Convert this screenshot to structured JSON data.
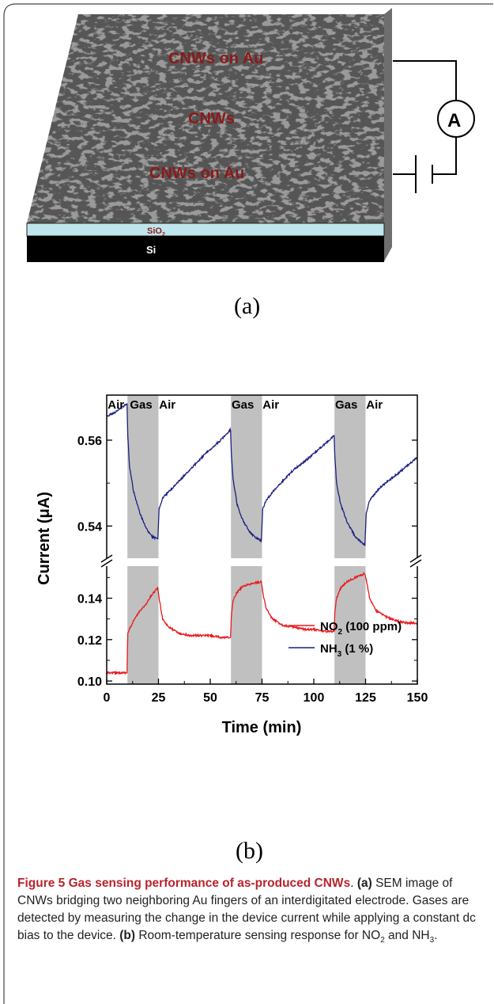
{
  "panel_a": {
    "labels": [
      "CNWs on Au",
      "CNWs",
      "CNWs on Au"
    ],
    "layer_sio2_main": "SiO",
    "layer_sio2_sub": "2",
    "layer_si": "Si",
    "ammeter": "A",
    "sublabel": "(a)"
  },
  "panel_b_sublabel": "(b)",
  "caption": {
    "fig_label": "Figure 5",
    "title": "Gas sensing performance of as-produced CNWs",
    "t1": ". ",
    "a_label": "(a)",
    "a_text": " SEM image of CNWs bridging two neighboring Au fingers of an interdigitated electrode. Gases are detected by measuring the change in the device current while applying a constant dc bias to the device. ",
    "b_label": "(b)",
    "b_text1": " Room-temperature sensing response for NO",
    "b_sub1": "2",
    "b_text2": " and NH",
    "b_sub2": "3",
    "b_text3": "."
  },
  "colors": {
    "no2": "#e8191c",
    "nh3": "#1a1f80",
    "gas_band": "#c0c0c0",
    "text_red": "#8b1a1a"
  },
  "chart_data": {
    "type": "line",
    "xlabel": "Time (min)",
    "ylabel": "Current (μA)",
    "x_ticks": [
      0,
      25,
      50,
      75,
      100,
      125,
      150
    ],
    "xlim": [
      0,
      150
    ],
    "y_ticks_upper": [
      0.54,
      0.56
    ],
    "y_ticks_lower": [
      0.1,
      0.12,
      0.14
    ],
    "ylim_upper": [
      0.5325,
      0.5705
    ],
    "ylim_lower": [
      0.0985,
      0.1555
    ],
    "broken_axis": true,
    "annotations": [
      "Air",
      "Gas",
      "Air",
      "Gas",
      "Air",
      "Gas",
      "Air"
    ],
    "gas_periods": [
      [
        10,
        25
      ],
      [
        60,
        75
      ],
      [
        110,
        125
      ]
    ],
    "legend": {
      "placement": "bottom-right",
      "entries": [
        {
          "main": "NO",
          "sub": "2",
          "rest": " (100 ppm)"
        },
        {
          "main": "NH",
          "sub": "3",
          "rest": " (1 %)"
        }
      ]
    },
    "series": [
      {
        "name": "NO2 (100 ppm)",
        "color": "#e8191c",
        "axis": "lower",
        "x": [
          0,
          9.8,
          10.2,
          11,
          13,
          16,
          19,
          22,
          24.7,
          25.3,
          27,
          30,
          35,
          40,
          45,
          50,
          55,
          59.8,
          60.2,
          61,
          63,
          66,
          70,
          74.7,
          75.3,
          77,
          80,
          85,
          90,
          95,
          100,
          105,
          109.8,
          110.2,
          111,
          113,
          116,
          120,
          124.7,
          125.3,
          127,
          130,
          135,
          140,
          145,
          150
        ],
        "y": [
          0.104,
          0.104,
          0.123,
          0.125,
          0.129,
          0.134,
          0.137,
          0.142,
          0.145,
          0.14,
          0.13,
          0.126,
          0.123,
          0.122,
          0.122,
          0.122,
          0.121,
          0.121,
          0.131,
          0.139,
          0.143,
          0.146,
          0.147,
          0.148,
          0.143,
          0.135,
          0.13,
          0.127,
          0.126,
          0.125,
          0.125,
          0.124,
          0.124,
          0.134,
          0.14,
          0.145,
          0.148,
          0.15,
          0.152,
          0.149,
          0.14,
          0.134,
          0.131,
          0.129,
          0.128,
          0.128
        ]
      },
      {
        "name": "NH3 (1 %)",
        "color": "#1a1f80",
        "axis": "upper",
        "x": [
          0,
          4,
          9.8,
          10.2,
          11,
          13,
          16,
          19,
          22,
          24.7,
          25.3,
          27,
          32,
          40,
          48,
          55,
          59.8,
          60.2,
          61,
          63,
          66,
          70,
          74.7,
          75.3,
          77,
          82,
          90,
          98,
          105,
          109.8,
          110.2,
          111,
          113,
          116,
          120,
          124.7,
          125.3,
          127,
          132,
          140,
          150
        ],
        "y": [
          0.5655,
          0.5665,
          0.5685,
          0.561,
          0.554,
          0.548,
          0.543,
          0.5395,
          0.5375,
          0.537,
          0.544,
          0.5465,
          0.549,
          0.553,
          0.557,
          0.56,
          0.5625,
          0.557,
          0.551,
          0.545,
          0.541,
          0.538,
          0.5365,
          0.544,
          0.546,
          0.549,
          0.553,
          0.556,
          0.559,
          0.561,
          0.556,
          0.55,
          0.545,
          0.541,
          0.5375,
          0.5355,
          0.543,
          0.546,
          0.549,
          0.552,
          0.556
        ]
      }
    ]
  }
}
